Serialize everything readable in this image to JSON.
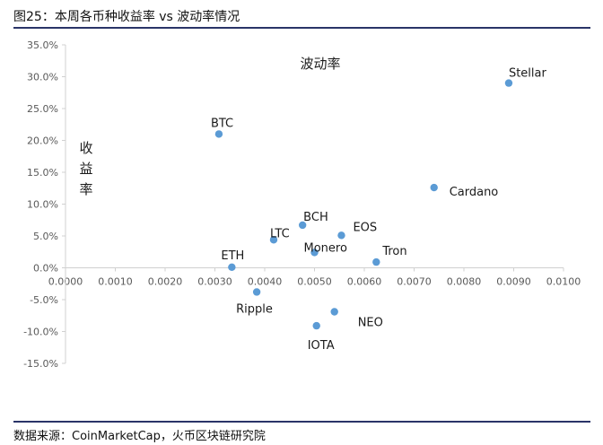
{
  "figure": {
    "title": "图25：本周各币种收益率 vs 波动率情况",
    "source": "数据来源：CoinMarketCap，火币区块链研究院"
  },
  "chart_data": {
    "type": "scatter",
    "title": "",
    "xlabel": "波动率",
    "ylabel": "收益率",
    "xlim": [
      0.0,
      0.01
    ],
    "ylim": [
      -15.0,
      35.0
    ],
    "x_ticks": [
      "0.0000",
      "0.0010",
      "0.0020",
      "0.0030",
      "0.0040",
      "0.0050",
      "0.0060",
      "0.0070",
      "0.0080",
      "0.0090",
      "0.0100"
    ],
    "y_ticks": [
      "-15.0%",
      "-10.0%",
      "-5.0%",
      "0.0%",
      "5.0%",
      "10.0%",
      "15.0%",
      "20.0%",
      "25.0%",
      "30.0%",
      "35.0%"
    ],
    "grid": false,
    "marker_color": "#5b9bd5",
    "points": [
      {
        "label": "Stellar",
        "x": 0.0089,
        "y": 29.0
      },
      {
        "label": "BTC",
        "x": 0.00308,
        "y": 21.0
      },
      {
        "label": "Cardano",
        "x": 0.0074,
        "y": 12.6
      },
      {
        "label": "BCH",
        "x": 0.00476,
        "y": 6.7
      },
      {
        "label": "EOS",
        "x": 0.00554,
        "y": 5.1
      },
      {
        "label": "LTC",
        "x": 0.00418,
        "y": 4.4
      },
      {
        "label": "Monero",
        "x": 0.005,
        "y": 2.4
      },
      {
        "label": "Tron",
        "x": 0.00624,
        "y": 0.9
      },
      {
        "label": "ETH",
        "x": 0.00334,
        "y": 0.1
      },
      {
        "label": "Ripple",
        "x": 0.00384,
        "y": -3.8
      },
      {
        "label": "NEO",
        "x": 0.0054,
        "y": -6.9
      },
      {
        "label": "IOTA",
        "x": 0.00504,
        "y": -9.1
      }
    ]
  }
}
